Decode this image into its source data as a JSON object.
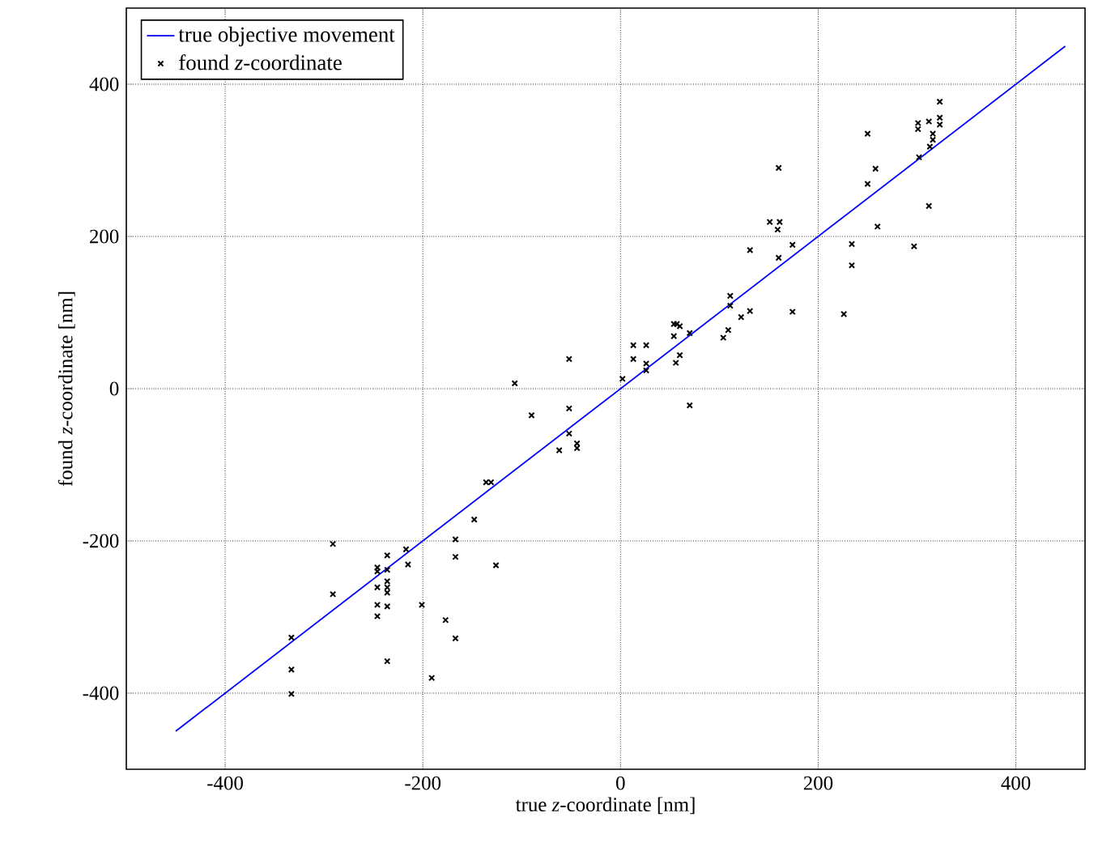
{
  "chart_data": {
    "type": "scatter",
    "xlabel": "true *z*-coordinate [nm]",
    "ylabel": "found *z*-coordinate [nm]",
    "xlim": [
      -500,
      470
    ],
    "ylim": [
      -500,
      500
    ],
    "xticks": [
      -400,
      -200,
      0,
      200,
      400
    ],
    "yticks": [
      -400,
      -200,
      0,
      200,
      400
    ],
    "grid": true,
    "legend": "top left",
    "series": [
      {
        "name": "true objective movement",
        "type": "line",
        "color": "#0000ff",
        "line_style": "solid",
        "marker": "none",
        "x": [
          -450,
          450
        ],
        "values": [
          -450,
          450
        ]
      },
      {
        "name": "found *z*-coordinate",
        "color": "#000000",
        "marker": "cross",
        "x": [
          -333,
          -333,
          -333,
          -291,
          -291,
          -246,
          -246,
          -246,
          -246,
          -246,
          -236,
          -236,
          -236,
          -236,
          -236,
          -236,
          -236,
          -217,
          -215,
          -201,
          -191,
          -177,
          -167,
          -167,
          -167,
          -148,
          -136,
          -131,
          -126,
          -107,
          -90,
          -62,
          -52,
          -52,
          -52,
          -44,
          -44,
          2,
          13,
          13,
          26,
          26,
          26,
          54,
          57,
          54,
          56,
          60,
          60,
          70,
          70,
          104,
          109,
          111,
          111,
          122,
          131,
          131,
          151,
          160,
          159,
          161,
          160,
          174,
          174,
          226,
          234,
          234,
          250,
          250,
          258,
          260,
          297,
          301,
          301,
          302,
          312,
          312,
          313,
          316,
          316,
          323,
          323,
          323
        ],
        "values": [
          -327,
          -369,
          -401,
          -204,
          -270,
          -235,
          -240,
          -261,
          -284,
          -299,
          -219,
          -238,
          -253,
          -261,
          -268,
          -286,
          -358,
          -211,
          -231,
          -284,
          -380,
          -304,
          -198,
          -221,
          -328,
          -172,
          -123,
          -123,
          -232,
          7,
          -35,
          -81,
          39,
          -26,
          -59,
          -72,
          -78,
          13,
          57,
          39,
          57,
          33,
          24,
          85,
          85,
          69,
          34,
          44,
          82,
          73,
          -22,
          67,
          77,
          122,
          109,
          94,
          182,
          102,
          219,
          290,
          209,
          219,
          172,
          189,
          101,
          98,
          190,
          162,
          335,
          269,
          289,
          213,
          187,
          349,
          341,
          304,
          351,
          240,
          318,
          335,
          327,
          377,
          356,
          347
        ]
      }
    ]
  }
}
